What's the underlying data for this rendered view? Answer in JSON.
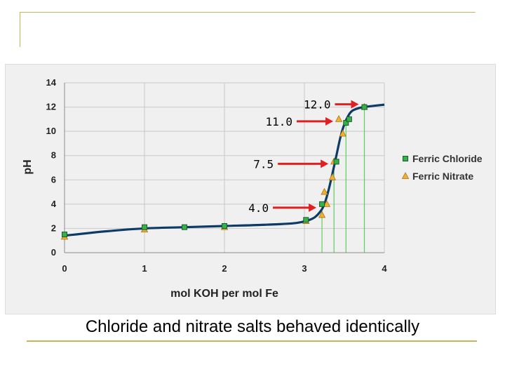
{
  "caption": "Chloride and nitrate salts behaved identically",
  "chart_data": {
    "type": "scatter",
    "xlabel": "mol KOH per mol Fe",
    "ylabel": "pH",
    "xlim": [
      0,
      4
    ],
    "ylim": [
      0,
      14
    ],
    "x_ticks": [
      "0",
      "1",
      "2",
      "3",
      "4"
    ],
    "y_ticks": [
      "0",
      "2",
      "4",
      "6",
      "8",
      "10",
      "12",
      "14"
    ],
    "grid": true,
    "legend_position": "right",
    "series": [
      {
        "name": "Ferric Chloride",
        "marker": "square",
        "color": "#33b249",
        "points": [
          [
            0,
            1.5
          ],
          [
            1,
            2.1
          ],
          [
            1.5,
            2.1
          ],
          [
            2,
            2.2
          ],
          [
            3.02,
            2.7
          ],
          [
            3.22,
            4.0
          ],
          [
            3.4,
            7.5
          ],
          [
            3.52,
            10.7
          ],
          [
            3.56,
            11.0
          ],
          [
            3.75,
            12.0
          ]
        ]
      },
      {
        "name": "Ferric Nitrate",
        "marker": "triangle",
        "color": "#f3b02d",
        "points": [
          [
            0,
            1.3
          ],
          [
            1,
            1.9
          ],
          [
            2,
            2.1
          ],
          [
            3.02,
            2.6
          ],
          [
            3.22,
            3.1
          ],
          [
            3.28,
            4.0
          ],
          [
            3.25,
            5.0
          ],
          [
            3.35,
            6.2
          ],
          [
            3.37,
            7.5
          ],
          [
            3.48,
            9.8
          ],
          [
            3.43,
            11.0
          ],
          [
            3.75,
            12.0
          ]
        ]
      }
    ],
    "fit_line": {
      "color": "#0d3b66",
      "points": [
        [
          0,
          1.4
        ],
        [
          0.5,
          1.75
        ],
        [
          1,
          2.0
        ],
        [
          1.5,
          2.1
        ],
        [
          2,
          2.2
        ],
        [
          2.5,
          2.3
        ],
        [
          2.9,
          2.45
        ],
        [
          3.1,
          2.8
        ],
        [
          3.2,
          3.4
        ],
        [
          3.25,
          4.0
        ],
        [
          3.3,
          5.1
        ],
        [
          3.35,
          6.5
        ],
        [
          3.4,
          8.0
        ],
        [
          3.45,
          9.5
        ],
        [
          3.5,
          10.6
        ],
        [
          3.55,
          11.3
        ],
        [
          3.6,
          11.7
        ],
        [
          3.7,
          11.95
        ],
        [
          3.8,
          12.05
        ],
        [
          4,
          12.2
        ]
      ]
    },
    "vertical_lines_x": [
      3.22,
      3.37,
      3.52,
      3.75
    ],
    "annotations": [
      {
        "text": "12.0",
        "target": [
          3.75,
          12.0
        ]
      },
      {
        "text": "11.0",
        "target": [
          3.43,
          11.0
        ]
      },
      {
        "text": "7.5",
        "target": [
          3.37,
          7.5
        ]
      },
      {
        "text": "4.0",
        "target": [
          3.22,
          4.0
        ]
      }
    ]
  }
}
